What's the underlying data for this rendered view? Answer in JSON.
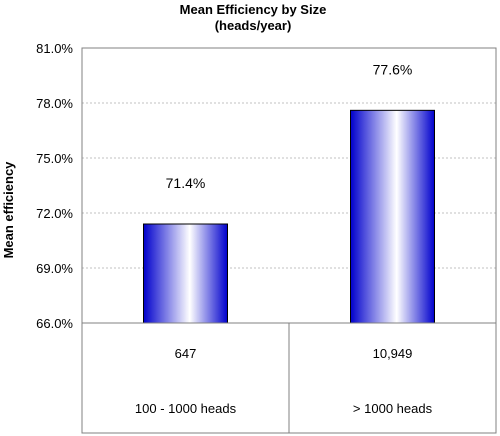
{
  "chart_data": {
    "type": "bar",
    "title": "Mean Efficiency by Size",
    "subtitle": "(heads/year)",
    "ylabel": "Mean efficiency",
    "xlabel": "",
    "ylim": [
      66.0,
      81.0
    ],
    "yticks": [
      "81.0%",
      "78.0%",
      "75.0%",
      "72.0%",
      "69.0%",
      "66.0%"
    ],
    "grid": true,
    "categories": [
      "100 - 1000 heads",
      "> 1000 heads"
    ],
    "values": [
      71.4,
      77.6
    ],
    "value_labels": [
      "71.4%",
      "77.6%"
    ],
    "table_row": [
      "647",
      "10,949"
    ]
  },
  "colors": {
    "bar_edge": "#0000cc",
    "bar_center": "#ffffff",
    "grid": "#c0c0c0",
    "axis": "#808080"
  }
}
